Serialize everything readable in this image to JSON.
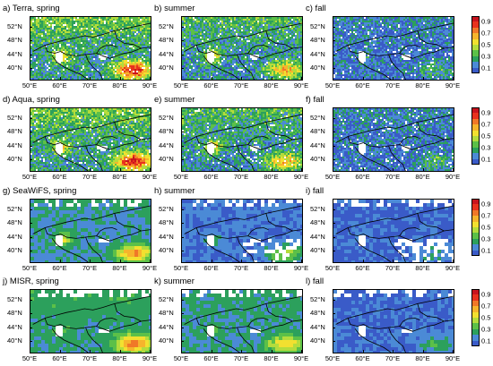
{
  "figure": {
    "rows": [
      {
        "row_id": "terra",
        "panels": [
          {
            "title": "a) Terra, spring",
            "season": "spring",
            "sensor": "Terra"
          },
          {
            "title": "b) summer",
            "season": "summer",
            "sensor": "Terra"
          },
          {
            "title": "c) fall",
            "season": "fall",
            "sensor": "Terra"
          }
        ]
      },
      {
        "row_id": "aqua",
        "panels": [
          {
            "title": "d) Aqua, spring",
            "season": "spring",
            "sensor": "Aqua"
          },
          {
            "title": "e) summer",
            "season": "summer",
            "sensor": "Aqua"
          },
          {
            "title": "f) fall",
            "season": "fall",
            "sensor": "Aqua"
          }
        ]
      },
      {
        "row_id": "seawifs",
        "panels": [
          {
            "title": "g) SeaWiFS, spring",
            "season": "spring",
            "sensor": "SeaWiFS"
          },
          {
            "title": "h) summer",
            "season": "summer",
            "sensor": "SeaWiFS"
          },
          {
            "title": "i) fall",
            "season": "fall",
            "sensor": "SeaWiFS"
          }
        ]
      },
      {
        "row_id": "misr",
        "panels": [
          {
            "title": "j) MISR, spring",
            "season": "spring",
            "sensor": "MISR"
          },
          {
            "title": "k) summer",
            "season": "summer",
            "sensor": "MISR"
          },
          {
            "title": "l) fall",
            "season": "fall",
            "sensor": "MISR"
          }
        ]
      }
    ],
    "lat_ticks": [
      "52°N",
      "48°N",
      "44°N",
      "40°N"
    ],
    "lat_values": [
      52,
      48,
      44,
      40
    ],
    "lon_ticks": [
      "50°E",
      "60°E",
      "70°E",
      "80°E",
      "90°E"
    ],
    "lon_values": [
      50,
      60,
      70,
      80,
      90
    ],
    "lon_range": [
      50,
      90
    ],
    "lat_range": [
      37,
      55
    ],
    "colorbar": {
      "labels": [
        "0.9",
        "0.7",
        "0.5",
        "0.3",
        "0.1"
      ],
      "colors": [
        "#c8141e",
        "#e8321e",
        "#f07828",
        "#f6b42c",
        "#f2e030",
        "#b4dc3c",
        "#5cc048",
        "#2ca05c",
        "#4b8ad6",
        "#3a5bc8"
      ]
    },
    "colors": {
      "ocean_blue": "#3a5bc8",
      "water_white": "#ffffff",
      "border": "#000000"
    }
  }
}
